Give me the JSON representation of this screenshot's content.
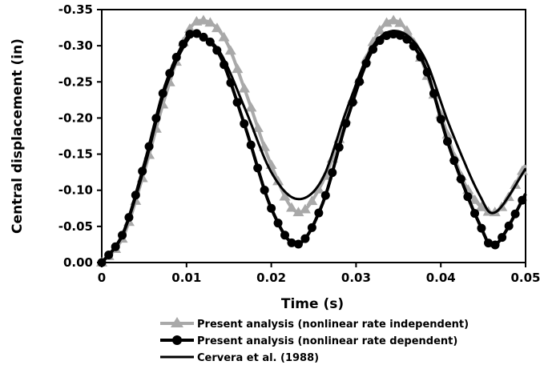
{
  "chart_data": {
    "type": "line",
    "xlabel": "Time (s)",
    "ylabel": "Central displacement (in)",
    "xlim": [
      0,
      0.05
    ],
    "ylim": [
      0.0,
      -0.35
    ],
    "x_ticks": [
      "0",
      "0.01",
      "0.02",
      "0.03",
      "0.04",
      "0.05"
    ],
    "y_ticks": [
      "0.00",
      "-0.05",
      "-0.10",
      "-0.15",
      "-0.20",
      "-0.25",
      "-0.30",
      "-0.35"
    ],
    "grid": false,
    "legend_position": "bottom",
    "series": [
      {
        "name": "Present analysis (nonlinear rate independent)",
        "color": "#a9a9a9",
        "marker": "triangle",
        "x": [
          0,
          0.0025,
          0.005,
          0.0075,
          0.01,
          0.012,
          0.0145,
          0.017,
          0.02,
          0.023,
          0.026,
          0.029,
          0.032,
          0.0345,
          0.037,
          0.04,
          0.043,
          0.0465,
          0.05
        ],
        "y": [
          0.0,
          -0.035,
          -0.125,
          -0.23,
          -0.315,
          -0.335,
          -0.31,
          -0.235,
          -0.135,
          -0.07,
          -0.11,
          -0.205,
          -0.305,
          -0.335,
          -0.3,
          -0.205,
          -0.105,
          -0.07,
          -0.135
        ]
      },
      {
        "name": "Present analysis (nonlinear rate dependent)",
        "color": "#000000",
        "marker": "circle",
        "x": [
          0,
          0.0025,
          0.005,
          0.0075,
          0.01,
          0.0115,
          0.014,
          0.017,
          0.02,
          0.023,
          0.026,
          0.029,
          0.032,
          0.035,
          0.038,
          0.041,
          0.0445,
          0.0465,
          0.05
        ],
        "y": [
          0.0,
          -0.04,
          -0.135,
          -0.245,
          -0.31,
          -0.315,
          -0.285,
          -0.185,
          -0.075,
          -0.025,
          -0.08,
          -0.2,
          -0.295,
          -0.315,
          -0.275,
          -0.16,
          -0.055,
          -0.025,
          -0.095
        ]
      },
      {
        "name": "Cervera et al. (1988)",
        "color": "#000000",
        "marker": "none",
        "x": [
          0,
          0.0025,
          0.005,
          0.0075,
          0.01,
          0.0115,
          0.014,
          0.017,
          0.02,
          0.023,
          0.026,
          0.029,
          0.032,
          0.035,
          0.038,
          0.041,
          0.0445,
          0.0465,
          0.05
        ],
        "y": [
          0.0,
          -0.04,
          -0.13,
          -0.24,
          -0.305,
          -0.315,
          -0.29,
          -0.21,
          -0.125,
          -0.088,
          -0.115,
          -0.215,
          -0.3,
          -0.32,
          -0.285,
          -0.19,
          -0.095,
          -0.07,
          -0.13
        ]
      }
    ]
  }
}
